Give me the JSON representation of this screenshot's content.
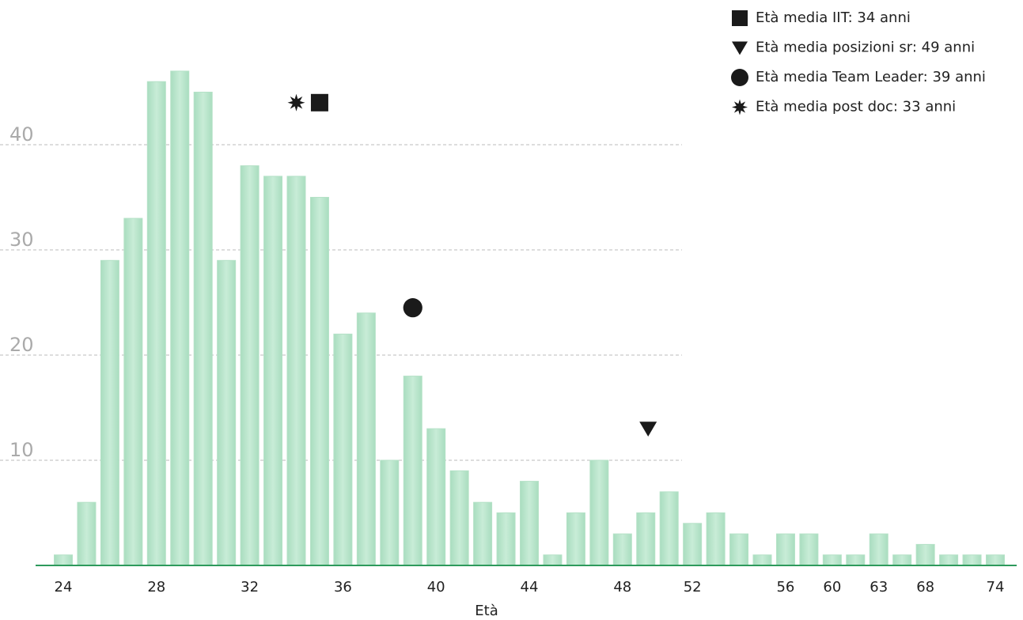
{
  "chart_data": {
    "type": "bar",
    "x_label": "Età",
    "categories": [
      "24",
      null,
      null,
      null,
      "28",
      null,
      null,
      null,
      "32",
      null,
      null,
      null,
      "36",
      null,
      null,
      null,
      "40",
      null,
      null,
      null,
      "44",
      null,
      null,
      null,
      "48",
      null,
      null,
      "52",
      null,
      null,
      null,
      "56",
      null,
      "60",
      null,
      "63",
      null,
      "68",
      null,
      null,
      "74"
    ],
    "values": [
      1,
      6,
      29,
      33,
      46,
      47,
      45,
      29,
      38,
      37,
      37,
      35,
      22,
      24,
      10,
      18,
      13,
      9,
      6,
      5,
      8,
      1,
      5,
      10,
      3,
      5,
      7,
      4,
      5,
      3,
      1,
      3,
      3,
      1,
      1,
      3,
      1,
      2,
      1,
      1,
      1
    ],
    "color": "#c8ecd7",
    "ylim": [
      0,
      50
    ],
    "yticks": [
      10,
      20,
      30,
      40
    ],
    "grid": true,
    "legend_position": "top-right",
    "markers": [
      {
        "name": "Età media IIT: 34 anni",
        "shape": "square",
        "x": 11,
        "y": 44
      },
      {
        "name": "Età media posizioni sr: 49 anni",
        "shape": "triangle",
        "x": 25.1,
        "y": 13
      },
      {
        "name": "Età media Team Leader: 39 anni",
        "shape": "circle",
        "x": 15,
        "y": 24.5
      },
      {
        "name": "Età media post doc: 33 anni",
        "shape": "star",
        "x": 10,
        "y": 44
      }
    ]
  }
}
